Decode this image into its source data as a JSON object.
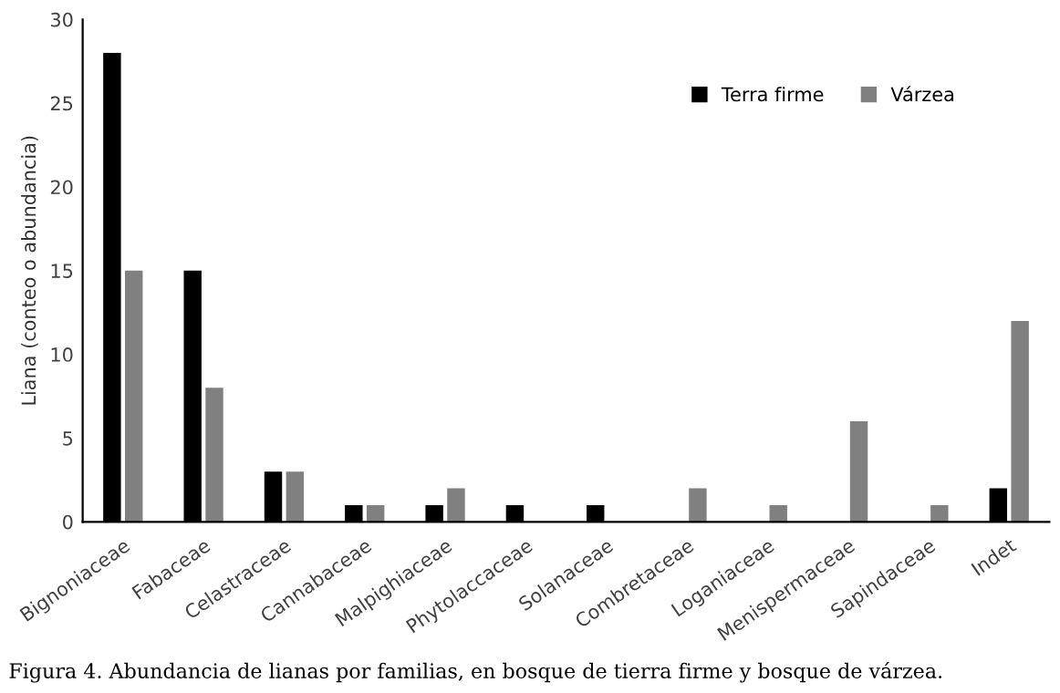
{
  "chart_data": {
    "type": "bar",
    "categories": [
      "Bignoniaceae",
      "Fabaceae",
      "Celastraceae",
      "Cannabaceae",
      "Malpighiaceae",
      "Phytolaccaceae",
      "Solanaceae",
      "Combretaceae",
      "Loganiaceae",
      "Menispermaceae",
      "Sapindaceae",
      "Indet"
    ],
    "series": [
      {
        "name": "Terra firme",
        "color": "#000000",
        "values": [
          28,
          15,
          3,
          1,
          1,
          1,
          1,
          0,
          0,
          0,
          0,
          2
        ]
      },
      {
        "name": "Várzea",
        "color": "#808080",
        "values": [
          15,
          8,
          3,
          1,
          2,
          0,
          0,
          2,
          1,
          6,
          1,
          12
        ]
      }
    ],
    "ylabel": "Liana (conteo o abundancia)",
    "ylim": [
      0,
      30
    ],
    "yticks": [
      0,
      5,
      10,
      15,
      20,
      25,
      30
    ],
    "grid": false,
    "legend": "top right",
    "annotations": [
      "Figura 4. Abundancia de lianas por familias, en bosque de tierra firme y bosque de várzea."
    ]
  }
}
